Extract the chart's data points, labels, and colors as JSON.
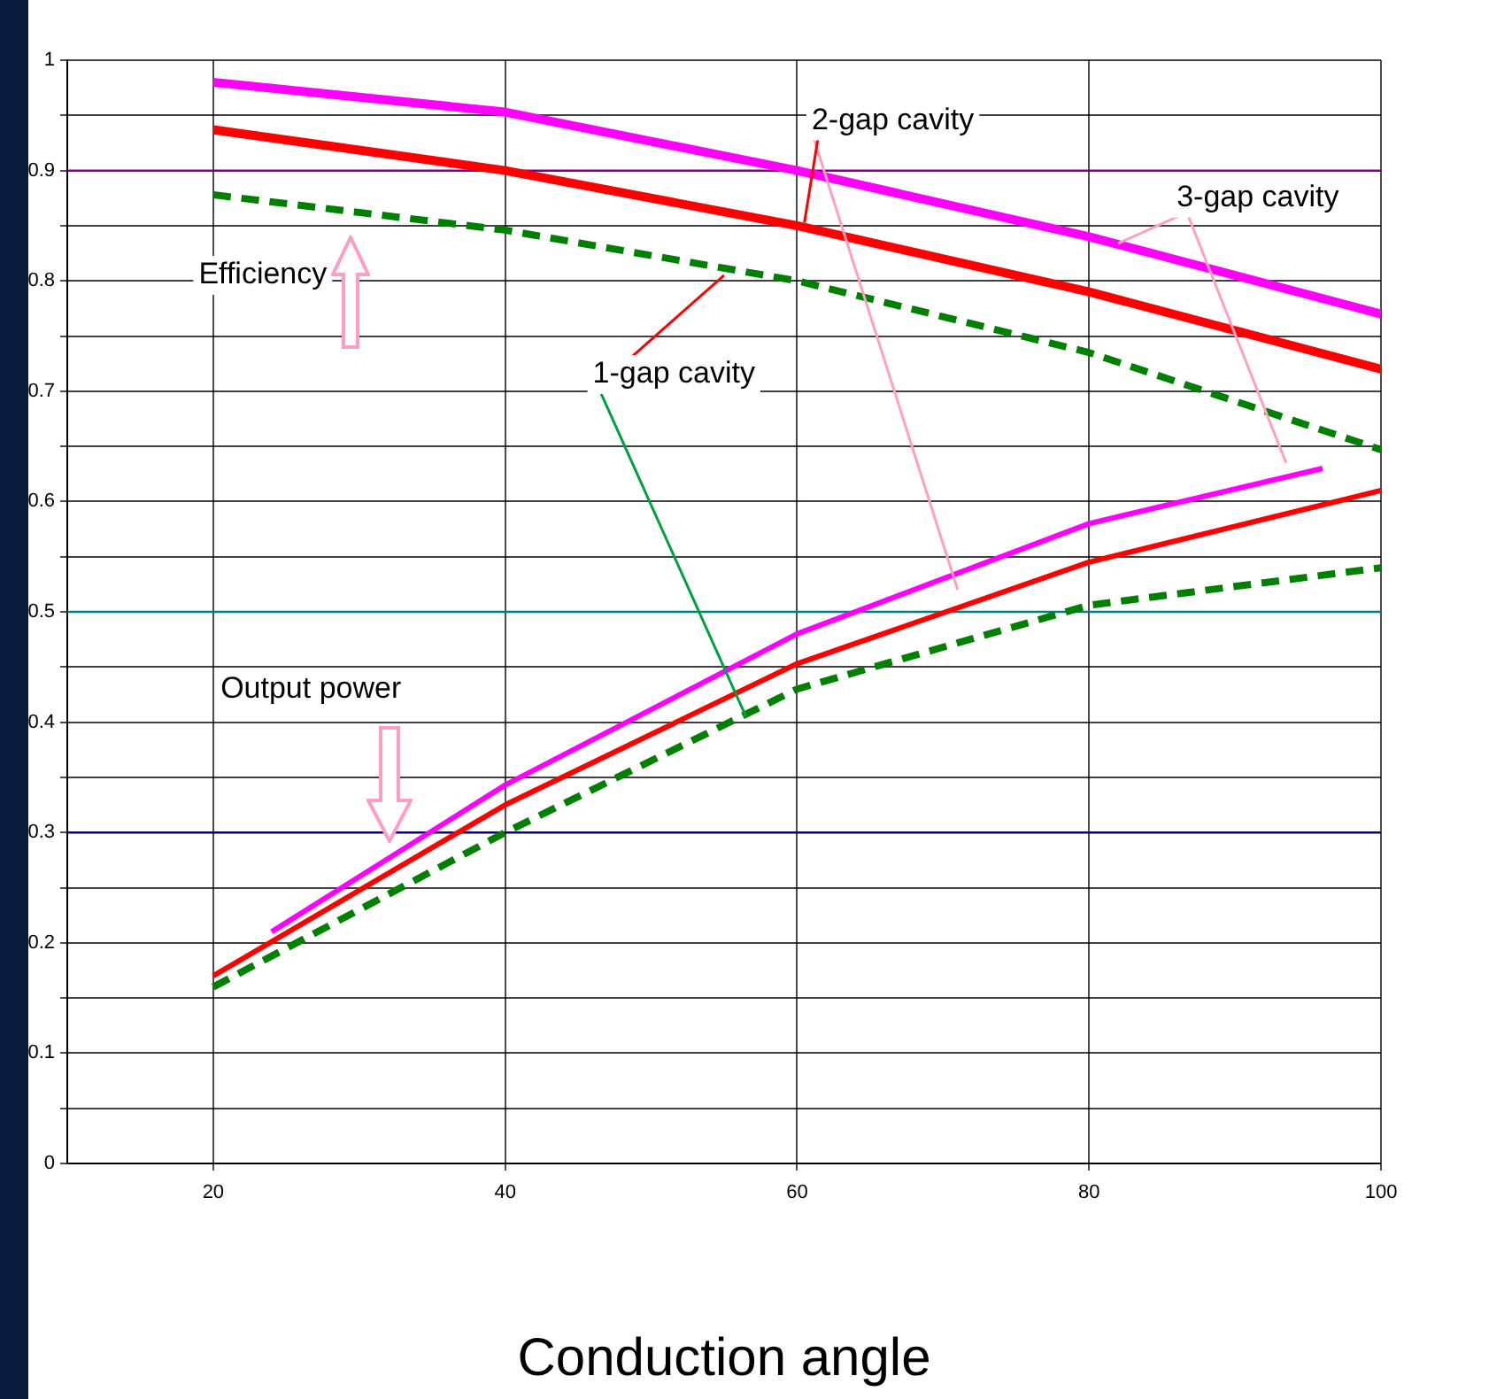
{
  "chart_data": {
    "type": "line",
    "xlabel": "Conduction angle",
    "xlim": [
      10,
      100
    ],
    "xticks": [
      20,
      40,
      60,
      80,
      100
    ],
    "ylim": [
      0,
      1
    ],
    "yticks": [
      0,
      {
        "value": 0.05,
        "label": null
      },
      0.1,
      {
        "value": 0.15,
        "label": null
      },
      0.2,
      {
        "value": 0.25,
        "label": null
      },
      0.3,
      {
        "value": 0.35,
        "label": null
      },
      0.4,
      {
        "value": 0.45,
        "label": null
      },
      0.5,
      {
        "value": 0.55,
        "label": null
      },
      0.6,
      {
        "value": 0.65,
        "label": null
      },
      0.7,
      {
        "value": 0.75,
        "label": null
      },
      0.8,
      {
        "value": 0.85,
        "label": null
      },
      0.9,
      {
        "value": 0.95,
        "label": null
      },
      1
    ],
    "grid": true,
    "legend": false,
    "marker": "none",
    "series": [
      {
        "color": "#ff00ff",
        "line_style": "solid",
        "x": [
          20,
          40,
          60,
          80,
          100
        ],
        "values": [
          0.98,
          0.953,
          0.9,
          0.84,
          0.77
        ]
      },
      {
        "color": "#ff0000",
        "line_style": "solid",
        "x": [
          20,
          40,
          60,
          80,
          100
        ],
        "values": [
          0.937,
          0.9,
          0.85,
          0.79,
          0.72
        ]
      },
      {
        "color": "#008000",
        "line_style": "dashed",
        "x": [
          20,
          40,
          60,
          80,
          100
        ],
        "values": [
          0.878,
          0.846,
          0.8,
          0.735,
          0.647
        ]
      },
      {
        "color": "#ff00ff",
        "line_style": "solid",
        "x": [
          24,
          40,
          60,
          80,
          96
        ],
        "values": [
          0.21,
          0.343,
          0.48,
          0.58,
          0.63
        ]
      },
      {
        "color": "#ff0000",
        "line_style": "solid",
        "x": [
          20,
          40,
          60,
          80,
          100
        ],
        "values": [
          0.17,
          0.325,
          0.453,
          0.545,
          0.61
        ]
      },
      {
        "color": "#008000",
        "line_style": "dashed",
        "x": [
          20,
          40,
          60,
          80,
          100
        ],
        "values": [
          0.16,
          0.3,
          0.43,
          0.506,
          0.54
        ]
      }
    ],
    "ref_lines": [
      {
        "axis": "y",
        "value": 0.9,
        "color": "#800080"
      },
      {
        "axis": "y",
        "value": 0.5,
        "color": "#008080"
      },
      {
        "axis": "y",
        "value": 0.3,
        "color": "#000080"
      }
    ],
    "annotations": [
      "Efficiency",
      "Output power",
      {
        "text": "1-gap cavity",
        "x": 56.5,
        "y": 0.405
      },
      {
        "text": "2-gap cavity",
        "x": 60.5,
        "y": 0.853
      },
      {
        "text": "3-gap cavity",
        "x": 82,
        "y": 0.834
      }
    ]
  }
}
